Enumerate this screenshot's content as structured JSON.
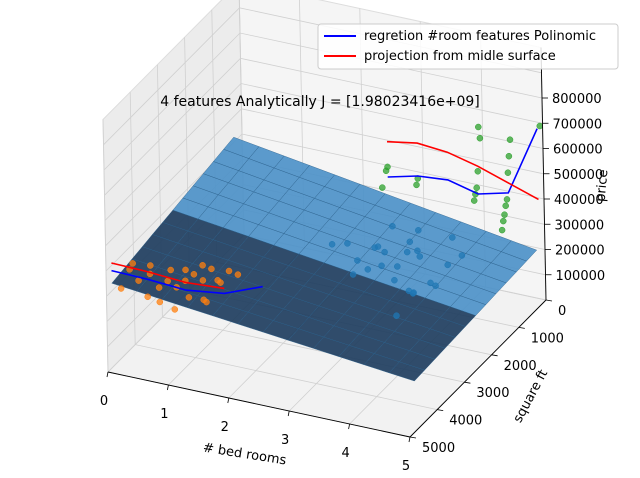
{
  "chart_data": {
    "type": "scatter",
    "projection": "3d",
    "title": "4 features Analytically J = [1.98023416e+09]",
    "xlabel": "# bed rooms",
    "ylabel": "square ft",
    "zlabel": "price",
    "xlim": [
      0,
      5
    ],
    "ylim": [
      5000,
      0
    ],
    "zlim": [
      0,
      800000
    ],
    "x_ticks": [
      "0",
      "1",
      "2",
      "3",
      "4",
      "5"
    ],
    "y_ticks": [
      "0",
      "1000",
      "2000",
      "3000",
      "4000",
      "5000"
    ],
    "z_ticks": [
      "100000",
      "200000",
      "300000",
      "400000",
      "500000",
      "600000",
      "700000",
      "800000"
    ],
    "grid": true,
    "legend_position": "top-right",
    "legend": [
      {
        "label": "regretion #room features Polinomic",
        "color": "#0000ff"
      },
      {
        "label": "projection from midle surface",
        "color": "#ff0000"
      }
    ],
    "colors": {
      "scatter_blue": "#1f77b4",
      "scatter_orange": "#ff7f0e",
      "scatter_green": "#2ca02c",
      "surface": "#1b3a5c",
      "surface_light": "#4a90c8"
    },
    "scatter_series": [
      {
        "color_key": "scatter_blue",
        "points": [
          [
            2.2,
            1600,
            250000
          ],
          [
            2.5,
            1700,
            280000
          ],
          [
            3.0,
            1800,
            300000
          ],
          [
            3.1,
            1900,
            320000
          ],
          [
            3.2,
            2000,
            260000
          ],
          [
            3.3,
            2100,
            330000
          ],
          [
            3.4,
            1500,
            270000
          ],
          [
            3.5,
            2200,
            240000
          ],
          [
            3.6,
            2300,
            310000
          ],
          [
            3.7,
            1700,
            290000
          ],
          [
            3.8,
            2000,
            350000
          ],
          [
            3.9,
            2400,
            230000
          ],
          [
            4.0,
            1800,
            200000
          ],
          [
            4.1,
            2200,
            260000
          ],
          [
            4.2,
            1600,
            380000
          ],
          [
            3.0,
            2600,
            280000
          ],
          [
            3.2,
            2500,
            300000
          ],
          [
            3.4,
            1400,
            300000
          ],
          [
            3.6,
            1900,
            170000
          ],
          [
            4.0,
            2600,
            260000
          ],
          [
            4.3,
            2000,
            320000
          ],
          [
            2.8,
            2000,
            260000
          ],
          [
            3.5,
            1300,
            340000
          ],
          [
            3.3,
            1800,
            400000
          ],
          [
            4.4,
            1700,
            330000
          ],
          [
            3.8,
            2800,
            180000
          ]
        ]
      },
      {
        "color_key": "scatter_orange",
        "points": [
          [
            0.2,
            4900,
            330000
          ],
          [
            0.3,
            4800,
            400000
          ],
          [
            0.4,
            4700,
            350000
          ],
          [
            0.5,
            4600,
            280000
          ],
          [
            0.6,
            4400,
            300000
          ],
          [
            0.7,
            4300,
            320000
          ],
          [
            0.8,
            4200,
            290000
          ],
          [
            0.9,
            4100,
            310000
          ],
          [
            1.0,
            4000,
            330000
          ],
          [
            1.1,
            3900,
            300000
          ],
          [
            1.2,
            3800,
            340000
          ],
          [
            1.3,
            3700,
            280000
          ],
          [
            0.5,
            4500,
            360000
          ],
          [
            0.8,
            4400,
            380000
          ],
          [
            1.0,
            4200,
            260000
          ],
          [
            1.2,
            4100,
            250000
          ],
          [
            0.6,
            4700,
            420000
          ],
          [
            0.9,
            4500,
            240000
          ],
          [
            1.1,
            3900,
            360000
          ],
          [
            1.3,
            3800,
            300000
          ],
          [
            1.4,
            3600,
            320000
          ],
          [
            0.7,
            4600,
            270000
          ],
          [
            1.0,
            4300,
            380000
          ],
          [
            0.4,
            4900,
            440000
          ],
          [
            1.2,
            4000,
            230000
          ],
          [
            1.5,
            3500,
            300000
          ]
        ]
      },
      {
        "color_key": "scatter_green",
        "points": [
          [
            4.0,
            100,
            600000
          ],
          [
            4.0,
            150,
            650000
          ],
          [
            4.0,
            200,
            480000
          ],
          [
            4.0,
            250,
            420000
          ],
          [
            4.0,
            300,
            400000
          ],
          [
            4.0,
            350,
            380000
          ],
          [
            4.5,
            100,
            620000
          ],
          [
            4.5,
            150,
            560000
          ],
          [
            4.5,
            200,
            500000
          ],
          [
            4.5,
            250,
            400000
          ],
          [
            4.5,
            300,
            380000
          ],
          [
            4.5,
            350,
            350000
          ],
          [
            4.5,
            400,
            330000
          ],
          [
            4.5,
            450,
            300000
          ],
          [
            5.0,
            100,
            700000
          ],
          [
            2.5,
            200,
            420000
          ],
          [
            2.5,
            250,
            410000
          ],
          [
            3.0,
            200,
            400000
          ],
          [
            3.0,
            250,
            380000
          ],
          [
            2.5,
            400,
            360000
          ]
        ]
      }
    ],
    "lines": [
      {
        "name": "regretion #room features Polinomic",
        "color": "#0000ff",
        "points": [
          [
            0,
            4800,
            380000
          ],
          [
            0.5,
            4600,
            350000
          ],
          [
            1.0,
            4300,
            300000
          ],
          [
            1.5,
            4000,
            280000
          ],
          [
            2.0,
            3700,
            300000
          ],
          [
            2.5,
            200,
            380000
          ],
          [
            3.0,
            200,
            410000
          ],
          [
            3.5,
            200,
            420000
          ],
          [
            4.0,
            200,
            390000
          ],
          [
            4.5,
            200,
            420000
          ],
          [
            5.0,
            200,
            700000
          ]
        ]
      },
      {
        "name": "projection from midle surface",
        "color": "#ff0000",
        "points": [
          [
            0,
            4800,
            410000
          ],
          [
            0.5,
            4600,
            380000
          ],
          [
            1.0,
            4300,
            330000
          ],
          [
            1.5,
            4000,
            300000
          ],
          [
            2.5,
            200,
            520000
          ],
          [
            3.0,
            200,
            540000
          ],
          [
            3.5,
            200,
            530000
          ],
          [
            4.0,
            200,
            500000
          ],
          [
            4.5,
            200,
            460000
          ],
          [
            5.0,
            200,
            420000
          ]
        ]
      }
    ],
    "surface": {
      "x_range": [
        0,
        5
      ],
      "y_range": [
        300,
        4800
      ],
      "z_formula_note": "plane",
      "z_at_x0_y4800": 330000,
      "z_at_x5_y300": 230000,
      "z_at_x0_y300": 420000,
      "z_at_x5_y4800": 200000
    }
  }
}
